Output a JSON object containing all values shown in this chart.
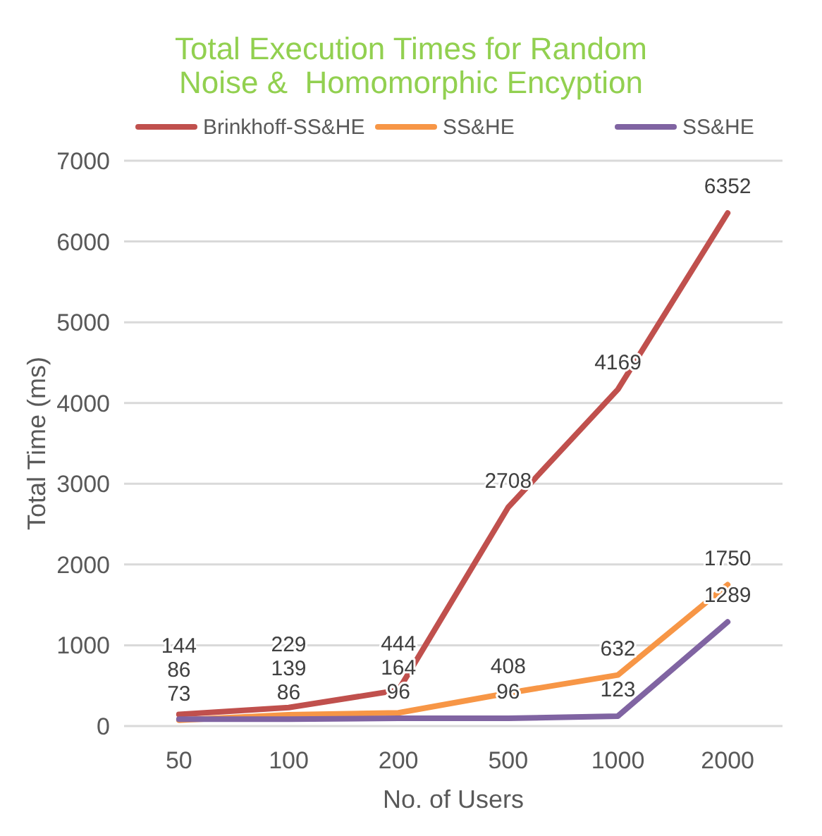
{
  "chart_data": {
    "type": "line",
    "title": "Total Execution Times for Random Noise &  Homomorphic Encyption",
    "xlabel": "No. of Users",
    "ylabel": "Total Time (ms)",
    "categories": [
      "50",
      "100",
      "200",
      "500",
      "1000",
      "2000"
    ],
    "series": [
      {
        "name": "Brinkhoff-SS&HE",
        "color": "#c0504d",
        "values": [
          144,
          229,
          444,
          2708,
          4169,
          6352
        ]
      },
      {
        "name": "SS&HE",
        "color": "#f79646",
        "values": [
          73,
          139,
          164,
          408,
          632,
          1750
        ]
      },
      {
        "name": "SS&HE",
        "color": "#8064a2",
        "values": [
          86,
          86,
          96,
          96,
          123,
          1289
        ]
      }
    ],
    "ylim": [
      0,
      7000
    ],
    "yticks": [
      0,
      1000,
      2000,
      3000,
      4000,
      5000,
      6000,
      7000
    ],
    "grid": "y",
    "legend": "top",
    "data_labels": true,
    "marker": "none",
    "line_style": "solid"
  }
}
